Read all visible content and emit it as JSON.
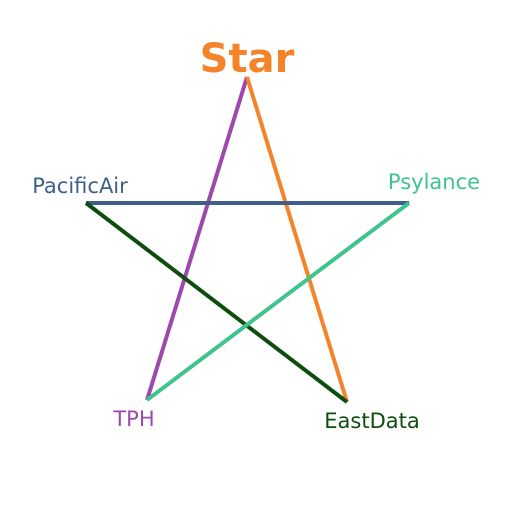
{
  "diagram": {
    "title": "Star",
    "title_color": "#f5832a",
    "nodes": [
      {
        "id": "pacificair",
        "label": "PacificAir",
        "color": "#3e5f88"
      },
      {
        "id": "psylance",
        "label": "Psylance",
        "color": "#40c48d"
      },
      {
        "id": "tph",
        "label": "TPH",
        "color": "#9e48ad"
      },
      {
        "id": "eastdata",
        "label": "EastData",
        "color": "#0d4d0d"
      }
    ],
    "edges": [
      {
        "from": "star",
        "to": "tph",
        "color": "#9e48ad"
      },
      {
        "from": "star",
        "to": "eastdata",
        "color": "#f5832a"
      },
      {
        "from": "pacificair",
        "to": "psylance",
        "color": "#3e5f88"
      },
      {
        "from": "pacificair",
        "to": "eastdata",
        "color": "#0d4d0d"
      },
      {
        "from": "psylance",
        "to": "tph",
        "color": "#40c48d"
      }
    ]
  }
}
